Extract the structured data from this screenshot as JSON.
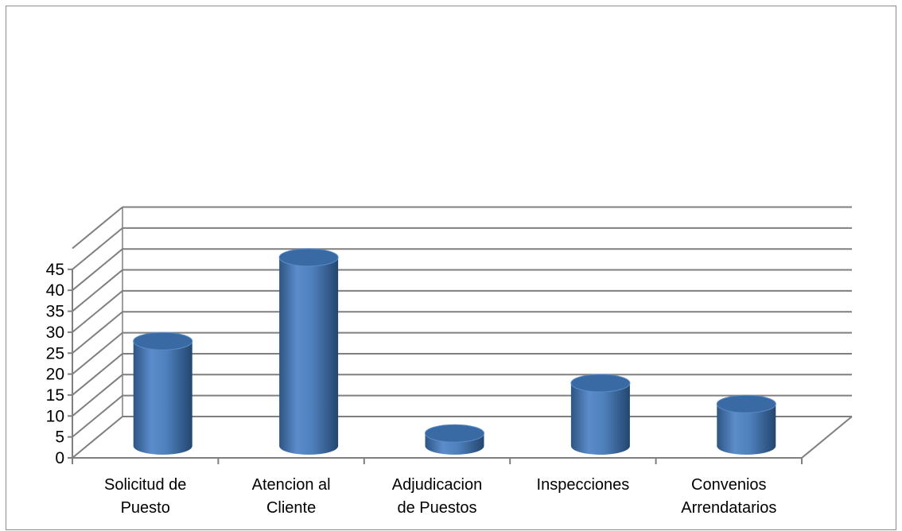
{
  "chart_data": {
    "type": "bar",
    "style": "3d-cylinder",
    "categories": [
      [
        "Solicitud de",
        "Puesto"
      ],
      [
        "Atencion al",
        "Cliente"
      ],
      [
        "Adjudicacion",
        "de Puestos"
      ],
      [
        "Inspecciones"
      ],
      [
        "Convenios",
        "Arrendatarios"
      ]
    ],
    "values": [
      25,
      45,
      3,
      15,
      10
    ],
    "ylim": [
      0,
      45
    ],
    "yticks": [
      0,
      5,
      10,
      15,
      20,
      25,
      30,
      35,
      40,
      45
    ],
    "grid": true,
    "legend": "none",
    "colors": {
      "bar_main": "#4f81bd",
      "bar_dark": "#2e5583",
      "bar_light": "#7ea6dc",
      "bar_top": "#3a6aa3",
      "grid": "#7f7f7f",
      "axis": "#7f7f7f"
    }
  }
}
